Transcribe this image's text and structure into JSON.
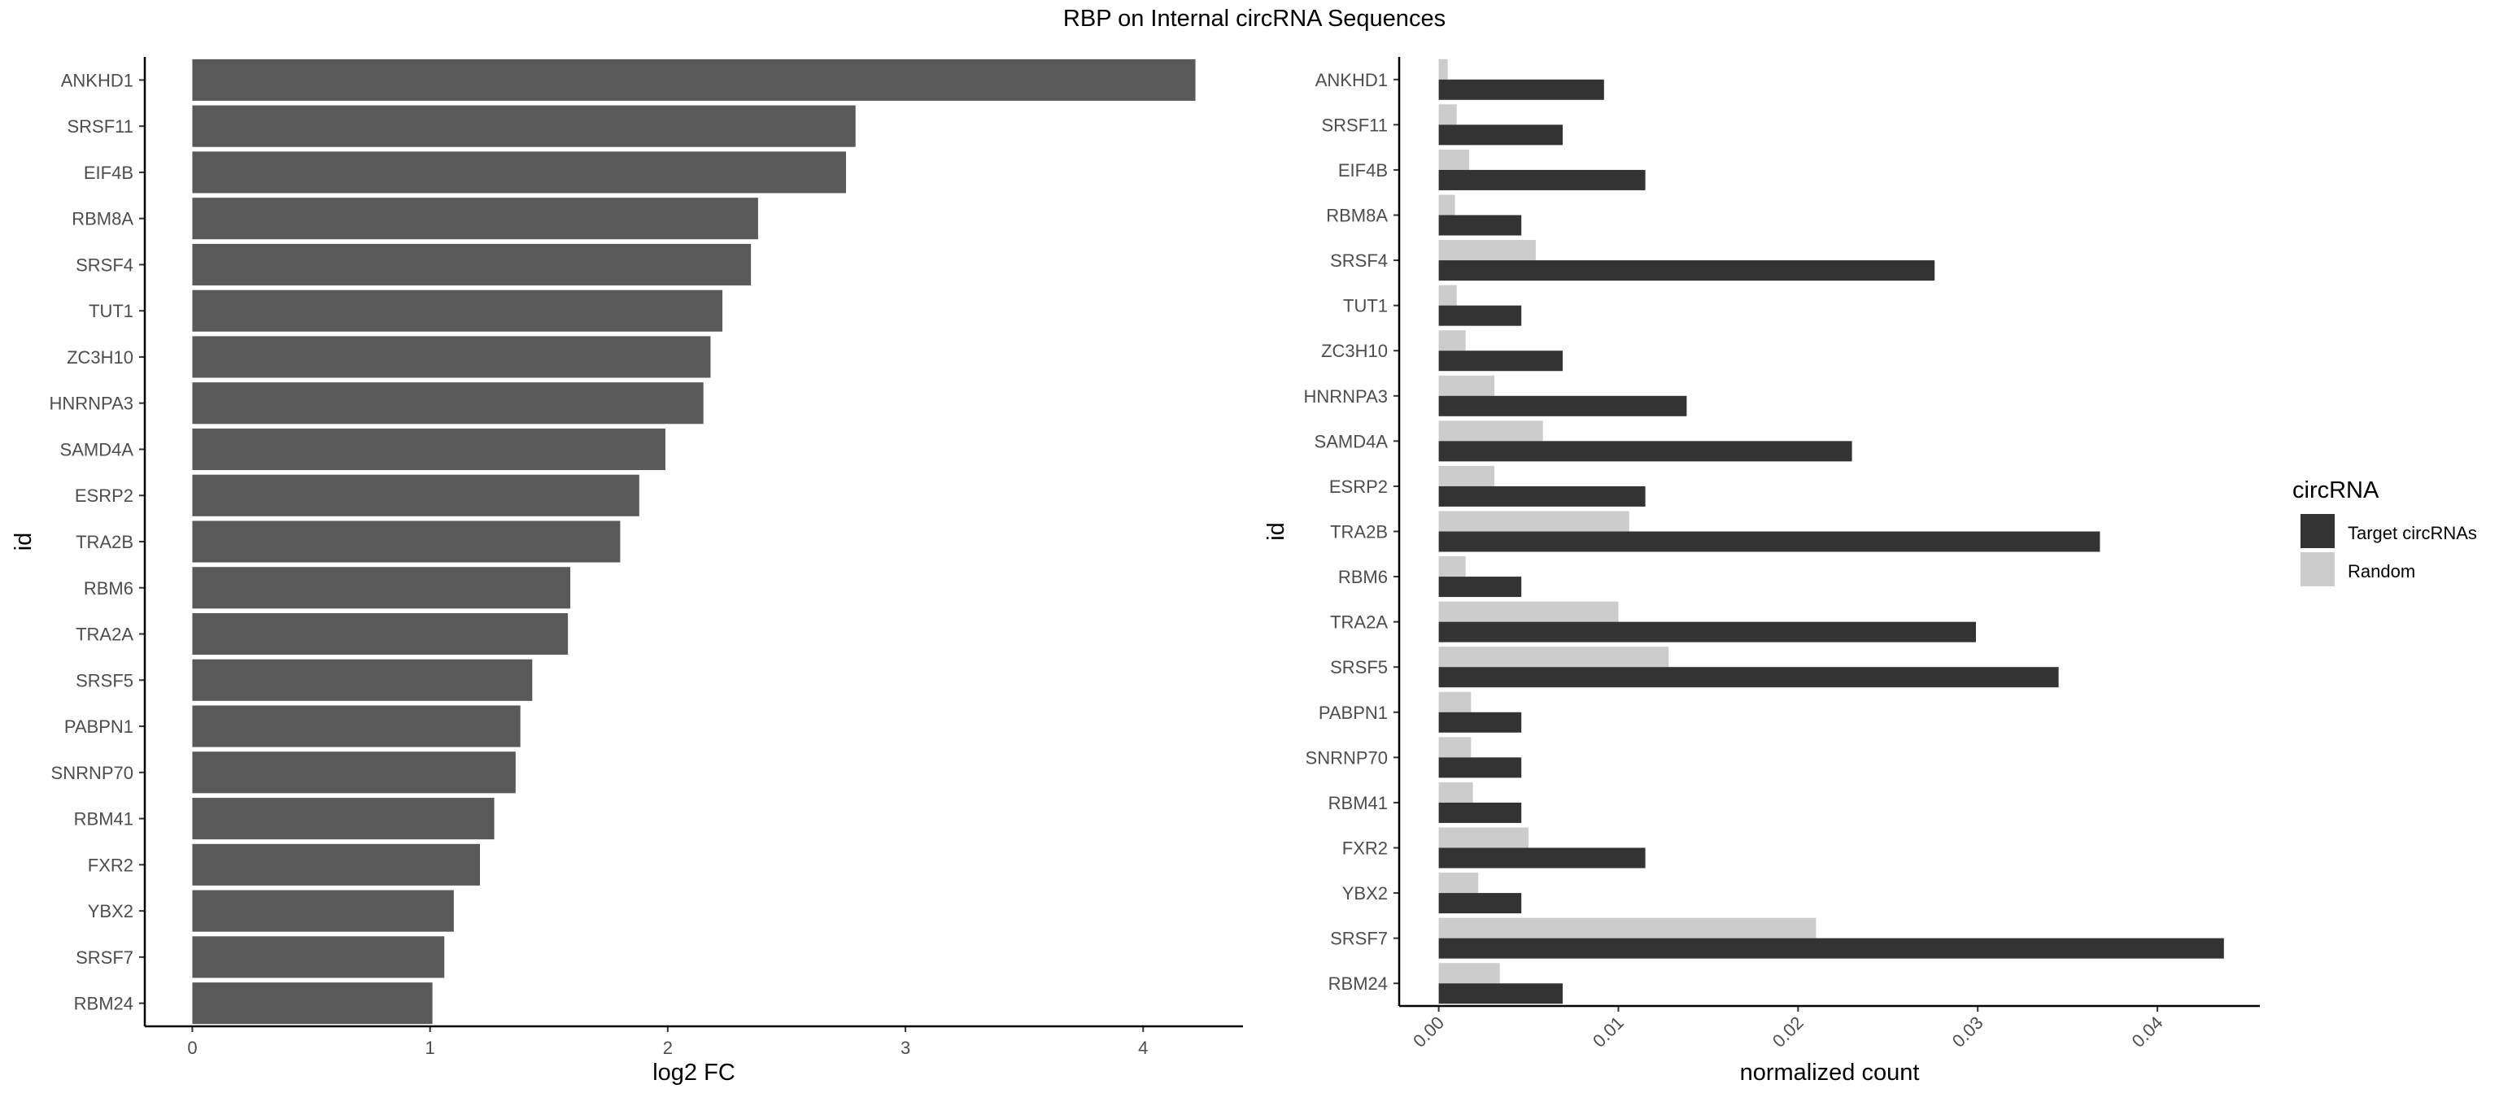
{
  "title": "RBP on Internal circRNA Sequences",
  "colors": {
    "left_bar": "#595959",
    "target": "#333333",
    "random": "#cccccc",
    "axis": "#000000",
    "tick_text": "#4d4d4d"
  },
  "chart_data": [
    {
      "type": "bar",
      "orientation": "horizontal",
      "xlabel": "log2 FC",
      "ylabel": "id",
      "xlim": [
        -0.2,
        4.42
      ],
      "xticks": [
        "0",
        "1",
        "2",
        "3",
        "4"
      ],
      "categories": [
        "ANKHD1",
        "SRSF11",
        "EIF4B",
        "RBM8A",
        "SRSF4",
        "TUT1",
        "ZC3H10",
        "HNRNPA3",
        "SAMD4A",
        "ESRP2",
        "TRA2B",
        "RBM6",
        "TRA2A",
        "SRSF5",
        "PABPN1",
        "SNRNP70",
        "RBM41",
        "FXR2",
        "YBX2",
        "SRSF7",
        "RBM24"
      ],
      "values": [
        4.22,
        2.79,
        2.75,
        2.38,
        2.35,
        2.23,
        2.18,
        2.15,
        1.99,
        1.88,
        1.8,
        1.59,
        1.58,
        1.43,
        1.38,
        1.36,
        1.27,
        1.21,
        1.1,
        1.06,
        1.01
      ],
      "grid": false,
      "legend": "none"
    },
    {
      "type": "bar",
      "orientation": "horizontal",
      "grouped": true,
      "xlabel": "normalized count",
      "ylabel": "id",
      "xlim": [
        -0.0022,
        0.0457
      ],
      "xticks": [
        "0.00",
        "0.01",
        "0.02",
        "0.03",
        "0.04"
      ],
      "categories": [
        "ANKHD1",
        "SRSF11",
        "EIF4B",
        "RBM8A",
        "SRSF4",
        "TUT1",
        "ZC3H10",
        "HNRNPA3",
        "SAMD4A",
        "ESRP2",
        "TRA2B",
        "RBM6",
        "TRA2A",
        "SRSF5",
        "PABPN1",
        "SNRNP70",
        "RBM41",
        "FXR2",
        "YBX2",
        "SRSF7",
        "RBM24"
      ],
      "legend_title": "circRNA",
      "legend_position": "right",
      "grid": false,
      "series": [
        {
          "name": "Target circRNAs",
          "values": [
            0.0092,
            0.0069,
            0.0115,
            0.0046,
            0.0276,
            0.0046,
            0.0069,
            0.0138,
            0.023,
            0.0115,
            0.0368,
            0.0046,
            0.0299,
            0.0345,
            0.0046,
            0.0046,
            0.0046,
            0.0115,
            0.0046,
            0.0437,
            0.0069
          ]
        },
        {
          "name": "Random",
          "values": [
            0.0005,
            0.001,
            0.0017,
            0.0009,
            0.0054,
            0.001,
            0.0015,
            0.0031,
            0.0058,
            0.0031,
            0.0106,
            0.0015,
            0.01,
            0.0128,
            0.0018,
            0.0018,
            0.0019,
            0.005,
            0.0022,
            0.021,
            0.0034
          ]
        }
      ]
    }
  ]
}
